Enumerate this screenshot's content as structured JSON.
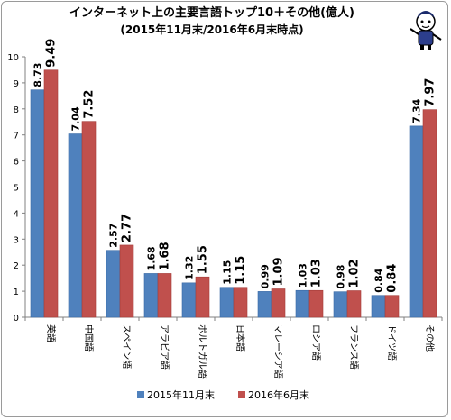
{
  "chart_data": {
    "type": "bar",
    "title": "インターネット上の主要言語トップ10＋その他(億人)",
    "subtitle": "(2015年11月末/2016年6月末時点)",
    "categories": [
      "英語",
      "中国語",
      "スペイン語",
      "アラビア語",
      "ポルトガル語",
      "日本語",
      "マレーシア語",
      "ロシア語",
      "フランス語",
      "ドイツ語",
      "その他"
    ],
    "series": [
      {
        "name": "2015年11月末",
        "color": "#4f81bd",
        "values": [
          8.73,
          7.04,
          2.57,
          1.68,
          1.32,
          1.15,
          0.99,
          1.03,
          0.98,
          0.84,
          7.34
        ],
        "labels": [
          "8.73",
          "7.04",
          "2.57",
          "1.68",
          "1.32",
          "1.15",
          "0.99",
          "1.03",
          "0.98",
          "0.84",
          "7.34"
        ]
      },
      {
        "name": "2016年6月末",
        "color": "#c0504d",
        "values": [
          9.49,
          7.52,
          2.77,
          1.68,
          1.55,
          1.15,
          1.09,
          1.03,
          1.02,
          0.84,
          7.97
        ],
        "labels": [
          "9.49",
          "7.52",
          "2.77",
          "1.68",
          "1.55",
          "1.15",
          "1.09",
          "1.03",
          "1.02",
          "0.84",
          "7.97"
        ]
      }
    ],
    "ylim": [
      0,
      10
    ],
    "yticks": [
      "0",
      "1",
      "2",
      "3",
      "4",
      "5",
      "6",
      "7",
      "8",
      "9",
      "10"
    ],
    "grid": false,
    "legend_position": "bottom"
  },
  "icon": "pointing-mascot-icon"
}
